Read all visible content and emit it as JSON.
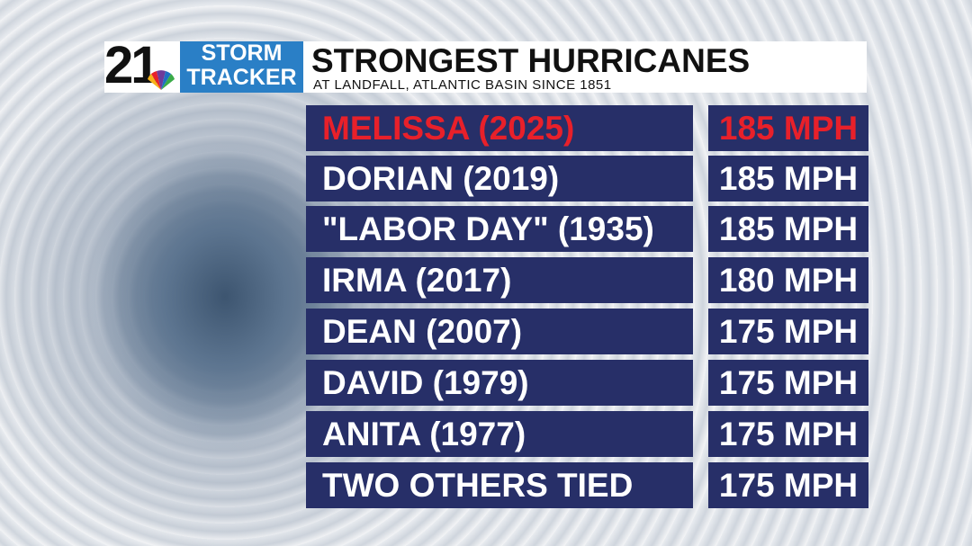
{
  "logo": {
    "number": "21",
    "line1": "STORM",
    "line2": "TRACKER"
  },
  "header": {
    "title": "STRONGEST HURRICANES",
    "subtitle": "AT LANDFALL, ATLANTIC BASIN SINCE 1851"
  },
  "table": {
    "rows": [
      [
        "MELISSA (2025)",
        "185 MPH"
      ],
      [
        "DORIAN (2019)",
        "185 MPH"
      ],
      [
        "\"LABOR DAY\" (1935)",
        "185 MPH"
      ],
      [
        "IRMA (2017)",
        "180 MPH"
      ],
      [
        "DEAN (2007)",
        "175 MPH"
      ],
      [
        "DAVID (1979)",
        "175 MPH"
      ],
      [
        "ANITA (1977)",
        "175 MPH"
      ],
      [
        "TWO OTHERS TIED",
        "175 MPH"
      ]
    ]
  }
}
